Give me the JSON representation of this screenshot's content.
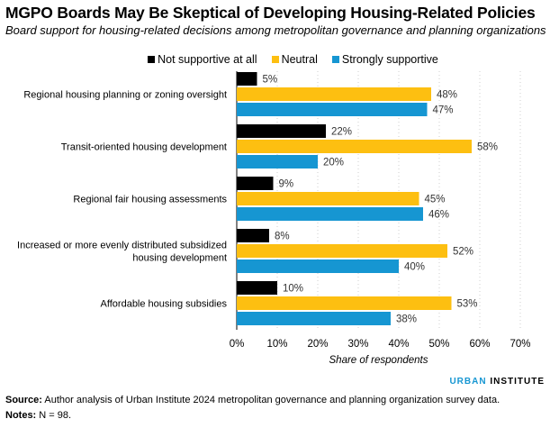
{
  "chart_data": {
    "type": "bar",
    "orientation": "horizontal",
    "title": "MGPO Boards May Be Skeptical of Developing Housing-Related Policies",
    "subtitle": "Board support for housing-related decisions among metropolitan governance and planning organizations",
    "xlabel": "Share of respondents",
    "xlim": [
      0,
      70
    ],
    "xticks": [
      "0%",
      "10%",
      "20%",
      "30%",
      "40%",
      "50%",
      "60%",
      "70%"
    ],
    "grid": "vertical dotted",
    "legend_position": "top",
    "categories": [
      [
        "Regional housing planning or zoning oversight"
      ],
      [
        "Transit-oriented housing development"
      ],
      [
        "Regional fair housing assessments"
      ],
      [
        "Increased or more evenly distributed subsidized",
        "housing development"
      ],
      [
        "Affordable housing subsidies"
      ]
    ],
    "series": [
      {
        "name": "Not supportive at all",
        "color": "#000000",
        "values": [
          5,
          22,
          9,
          8,
          10
        ]
      },
      {
        "name": "Neutral",
        "color": "#fdbf11",
        "values": [
          48,
          58,
          45,
          52,
          53
        ]
      },
      {
        "name": "Strongly supportive",
        "color": "#1696d2",
        "values": [
          47,
          20,
          46,
          40,
          38
        ]
      }
    ]
  },
  "branding": {
    "urban": "URBAN",
    "institute": "INSTITUTE"
  },
  "source": {
    "label": "Source:",
    "text": " Author analysis of Urban Institute 2024 metropolitan governance and planning organization survey data."
  },
  "notes": {
    "label": "Notes:",
    "text": " N = 98."
  }
}
